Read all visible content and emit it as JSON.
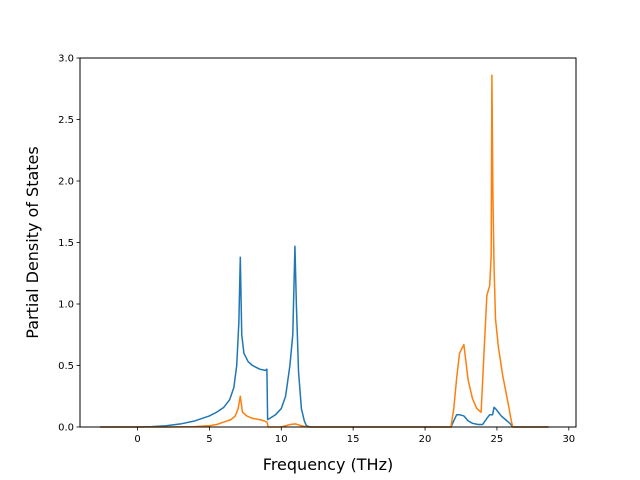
{
  "chart_data": {
    "type": "line",
    "xlabel": "Frequency (THz)",
    "ylabel": "Partial Density of States",
    "xlim": [
      -4.0,
      30.5
    ],
    "ylim": [
      0.0,
      3.0
    ],
    "x_ticks": [
      0,
      5,
      10,
      15,
      20,
      25,
      30
    ],
    "y_ticks": [
      0.0,
      0.5,
      1.0,
      1.5,
      2.0,
      2.5,
      3.0
    ],
    "x_tick_labels": [
      "0",
      "5",
      "10",
      "15",
      "20",
      "25",
      "30"
    ],
    "y_tick_labels": [
      "0.0",
      "0.5",
      "1.0",
      "1.5",
      "2.0",
      "2.5",
      "3.0"
    ],
    "grid": false,
    "series": [
      {
        "color": "#1f77b4",
        "x": [
          -2.6,
          0,
          1,
          2,
          3,
          4,
          5,
          5.5,
          6,
          6.4,
          6.7,
          6.9,
          7.05,
          7.15,
          7.25,
          7.4,
          7.7,
          8.0,
          8.5,
          8.9,
          9.0,
          9.05,
          9.2,
          9.6,
          10.0,
          10.3,
          10.6,
          10.8,
          10.95,
          11.05,
          11.2,
          11.4,
          11.6,
          11.75,
          12.0,
          15,
          21.5,
          21.8,
          22.0,
          22.2,
          22.4,
          22.7,
          23.0,
          23.3,
          23.7,
          24.0,
          24.3,
          24.5,
          24.7,
          24.8,
          24.9,
          25.1,
          25.3,
          25.6,
          25.9,
          26.1,
          26.5,
          28.6
        ],
        "y": [
          0.0,
          0.0,
          0.003,
          0.01,
          0.025,
          0.05,
          0.09,
          0.12,
          0.16,
          0.22,
          0.32,
          0.5,
          0.85,
          1.38,
          0.75,
          0.6,
          0.53,
          0.5,
          0.47,
          0.46,
          0.47,
          0.06,
          0.07,
          0.1,
          0.15,
          0.25,
          0.5,
          0.75,
          1.47,
          1.0,
          0.45,
          0.15,
          0.05,
          0.01,
          0.0,
          0.0,
          0.0,
          0.0,
          0.05,
          0.1,
          0.1,
          0.09,
          0.05,
          0.03,
          0.02,
          0.02,
          0.07,
          0.1,
          0.1,
          0.16,
          0.15,
          0.12,
          0.09,
          0.06,
          0.03,
          0.0,
          0.0,
          0.0
        ]
      },
      {
        "color": "#ff7f0e",
        "x": [
          -2.6,
          0,
          2,
          4,
          5,
          5.5,
          6,
          6.5,
          6.8,
          7.0,
          7.15,
          7.3,
          7.6,
          8.0,
          8.5,
          8.8,
          9.0,
          9.1,
          10,
          10.6,
          11.0,
          11.4,
          11.8,
          15,
          21.5,
          21.8,
          22.0,
          22.2,
          22.4,
          22.7,
          23.0,
          23.3,
          23.6,
          23.9,
          24.1,
          24.3,
          24.5,
          24.6,
          24.65,
          24.72,
          24.8,
          24.9,
          25.1,
          25.4,
          25.8,
          26.0,
          26.1,
          26.5,
          28.6
        ],
        "y": [
          0.0,
          0.0,
          0.0,
          0.003,
          0.01,
          0.02,
          0.04,
          0.06,
          0.09,
          0.15,
          0.25,
          0.12,
          0.09,
          0.07,
          0.06,
          0.05,
          0.04,
          0.0,
          0.0,
          0.02,
          0.025,
          0.01,
          0.0,
          0.0,
          0.0,
          0.0,
          0.15,
          0.4,
          0.6,
          0.67,
          0.38,
          0.23,
          0.15,
          0.12,
          0.6,
          1.07,
          1.15,
          1.4,
          2.86,
          1.9,
          1.3,
          0.88,
          0.65,
          0.42,
          0.18,
          0.05,
          0.0,
          0.0,
          0.0
        ]
      }
    ]
  }
}
